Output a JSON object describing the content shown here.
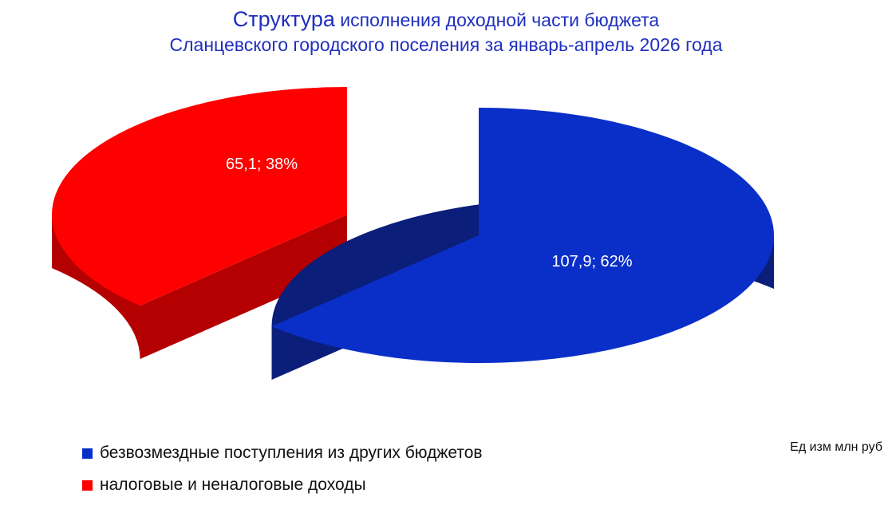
{
  "title": {
    "word1": "Структура",
    "rest1": "исполнения доходной части бюджета",
    "line2": "Сланцевского городского поселения за январь-апрель 2026 года"
  },
  "chart_data": {
    "type": "pie",
    "style": "3d-exploded",
    "slices": [
      {
        "label": "безвозмездные поступления из других бюджетов",
        "value": 107.9,
        "percent": 62,
        "data_label": "107,9; 62%",
        "color": "#0a2fc8",
        "color_side": "#0a1e7a"
      },
      {
        "label": "налоговые и неналоговые доходы",
        "value": 65.1,
        "percent": 38,
        "data_label": "65,1; 38%",
        "color": "#ff0000",
        "color_side": "#b40000"
      }
    ],
    "legend_position": "bottom-left"
  },
  "unit_note": "Ед изм млн руб"
}
